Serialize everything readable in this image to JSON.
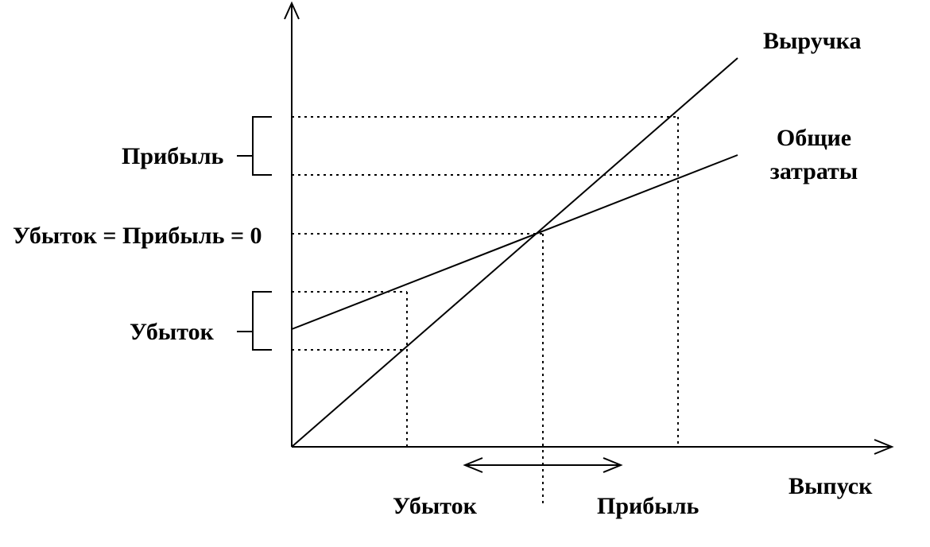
{
  "labels": {
    "revenue": "Выручка",
    "total_costs_line1": "Общие",
    "total_costs_line2": "затраты",
    "profit_left": "Прибыль",
    "breakeven": "Убыток = Прибыль = 0",
    "loss_left": "Убыток",
    "output": "Выпуск",
    "loss_bottom": "Убыток",
    "profit_bottom": "Прибыль"
  },
  "colors": {
    "stroke": "#000000",
    "background": "#ffffff"
  }
}
